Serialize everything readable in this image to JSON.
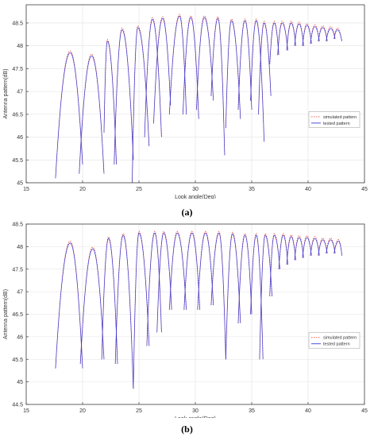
{
  "chart_data": [
    {
      "type": "line",
      "panel_label": "(a)",
      "xlabel": "Look angle(Deg)",
      "ylabel": "Antenna pattern(dB)",
      "xlim": [
        15,
        45
      ],
      "ylim": [
        45,
        48.9
      ],
      "xticks": [
        15,
        20,
        25,
        30,
        35,
        40,
        45
      ],
      "yticks": [
        45,
        45.5,
        46,
        46.5,
        47,
        47.5,
        48,
        48.5
      ],
      "grid": true,
      "legend_position": "right",
      "series": [
        {
          "name": "simulated pattern",
          "color": "#e8584a",
          "style": "dotted"
        },
        {
          "name": "tested pattern",
          "color": "#3a3ad8",
          "style": "solid"
        }
      ],
      "lobes": [
        {
          "start": 17.6,
          "peak": 18.9,
          "end": 20.0,
          "peak_value": 47.85,
          "left_min": 45.1,
          "right_min": 45.4
        },
        {
          "start": 19.7,
          "peak": 20.8,
          "end": 21.9,
          "peak_value": 47.78,
          "left_min": 45.2,
          "right_min": 45.2
        },
        {
          "start": 21.9,
          "peak": 22.2,
          "end": 23.0,
          "peak_value": 48.1,
          "left_min": 46.1,
          "right_min": 45.4
        },
        {
          "start": 22.8,
          "peak": 23.5,
          "end": 24.5,
          "peak_value": 48.35,
          "left_min": 45.4,
          "right_min": 45.5
        },
        {
          "start": 24.4,
          "peak": 24.9,
          "end": 25.9,
          "peak_value": 48.4,
          "left_min": 45.0,
          "right_min": 45.8
        },
        {
          "start": 25.5,
          "peak": 26.2,
          "end": 27.0,
          "peak_value": 48.58,
          "left_min": 46.0,
          "right_min": 46.0
        },
        {
          "start": 26.3,
          "peak": 27.1,
          "end": 27.8,
          "peak_value": 48.6,
          "left_min": 46.3,
          "right_min": 46.7
        },
        {
          "start": 27.7,
          "peak": 28.6,
          "end": 29.2,
          "peak_value": 48.65,
          "left_min": 46.5,
          "right_min": 46.5
        },
        {
          "start": 28.9,
          "peak": 29.6,
          "end": 30.3,
          "peak_value": 48.62,
          "left_min": 46.5,
          "right_min": 46.4
        },
        {
          "start": 30.1,
          "peak": 30.8,
          "end": 31.6,
          "peak_value": 48.62,
          "left_min": 46.6,
          "right_min": 46.8
        },
        {
          "start": 31.4,
          "peak": 32.0,
          "end": 32.6,
          "peak_value": 48.6,
          "left_min": 46.9,
          "right_min": 45.6
        },
        {
          "start": 32.7,
          "peak": 33.2,
          "end": 34.0,
          "peak_value": 48.55,
          "left_min": 46.2,
          "right_min": 46.4
        },
        {
          "start": 33.8,
          "peak": 34.4,
          "end": 35.0,
          "peak_value": 48.55,
          "left_min": 46.6,
          "right_min": 46.6
        },
        {
          "start": 34.9,
          "peak": 35.4,
          "end": 36.1,
          "peak_value": 48.55,
          "left_min": 46.8,
          "right_min": 45.9
        },
        {
          "start": 35.6,
          "peak": 36.1,
          "end": 36.7,
          "peak_value": 48.5,
          "left_min": 46.5,
          "right_min": 46.9
        },
        {
          "start": 36.6,
          "peak": 37.0,
          "end": 37.4,
          "peak_value": 48.5,
          "left_min": 47.6,
          "right_min": 47.8
        },
        {
          "start": 37.3,
          "peak": 37.7,
          "end": 38.2,
          "peak_value": 48.5,
          "left_min": 47.8,
          "right_min": 47.9
        },
        {
          "start": 38.1,
          "peak": 38.5,
          "end": 38.9,
          "peak_value": 48.5,
          "left_min": 47.9,
          "right_min": 48.0
        },
        {
          "start": 38.8,
          "peak": 39.2,
          "end": 39.6,
          "peak_value": 48.48,
          "left_min": 48.0,
          "right_min": 48.0
        },
        {
          "start": 39.5,
          "peak": 39.9,
          "end": 40.3,
          "peak_value": 48.45,
          "left_min": 48.0,
          "right_min": 48.05
        },
        {
          "start": 40.2,
          "peak": 40.6,
          "end": 41.0,
          "peak_value": 48.42,
          "left_min": 48.05,
          "right_min": 48.1
        },
        {
          "start": 40.9,
          "peak": 41.3,
          "end": 41.7,
          "peak_value": 48.4,
          "left_min": 48.1,
          "right_min": 48.1
        },
        {
          "start": 41.6,
          "peak": 42.0,
          "end": 42.4,
          "peak_value": 48.38,
          "left_min": 48.1,
          "right_min": 48.15
        },
        {
          "start": 42.3,
          "peak": 42.6,
          "end": 43.0,
          "peak_value": 48.35,
          "left_min": 48.15,
          "right_min": 48.1
        }
      ]
    },
    {
      "type": "line",
      "panel_label": "(b)",
      "xlabel": "Look angle(Deg)",
      "ylabel": "Antenna pattern(dB)",
      "xlim": [
        15,
        45
      ],
      "ylim": [
        44.5,
        48.5
      ],
      "xticks": [
        15,
        20,
        25,
        30,
        35,
        40,
        45
      ],
      "yticks": [
        44.5,
        45,
        45.5,
        46,
        46.5,
        47,
        47.5,
        48,
        48.5
      ],
      "grid": true,
      "legend_position": "right",
      "series": [
        {
          "name": "simulated pattern",
          "color": "#e8584a",
          "style": "dotted"
        },
        {
          "name": "tested pattern",
          "color": "#3a3ad8",
          "style": "solid"
        }
      ],
      "lobes": [
        {
          "start": 17.6,
          "peak": 18.9,
          "end": 20.0,
          "peak_value": 48.08,
          "left_min": 45.3,
          "right_min": 45.3
        },
        {
          "start": 19.8,
          "peak": 20.9,
          "end": 21.9,
          "peak_value": 47.95,
          "left_min": 45.4,
          "right_min": 45.5
        },
        {
          "start": 21.7,
          "peak": 22.3,
          "end": 23.1,
          "peak_value": 48.18,
          "left_min": 45.5,
          "right_min": 45.4
        },
        {
          "start": 22.9,
          "peak": 23.6,
          "end": 24.5,
          "peak_value": 48.25,
          "left_min": 45.4,
          "right_min": 44.85
        },
        {
          "start": 24.5,
          "peak": 25.0,
          "end": 25.9,
          "peak_value": 48.3,
          "left_min": 44.85,
          "right_min": 45.8
        },
        {
          "start": 25.7,
          "peak": 26.4,
          "end": 27.0,
          "peak_value": 48.3,
          "left_min": 45.8,
          "right_min": 46.1
        },
        {
          "start": 26.6,
          "peak": 27.2,
          "end": 27.9,
          "peak_value": 48.3,
          "left_min": 46.1,
          "right_min": 46.6
        },
        {
          "start": 27.7,
          "peak": 28.4,
          "end": 29.2,
          "peak_value": 48.3,
          "left_min": 46.6,
          "right_min": 46.6
        },
        {
          "start": 29.0,
          "peak": 29.7,
          "end": 30.4,
          "peak_value": 48.3,
          "left_min": 46.6,
          "right_min": 46.6
        },
        {
          "start": 30.2,
          "peak": 30.9,
          "end": 31.6,
          "peak_value": 48.3,
          "left_min": 46.6,
          "right_min": 46.7
        },
        {
          "start": 31.4,
          "peak": 32.1,
          "end": 32.7,
          "peak_value": 48.3,
          "left_min": 46.7,
          "right_min": 45.5
        },
        {
          "start": 32.7,
          "peak": 33.3,
          "end": 34.0,
          "peak_value": 48.28,
          "left_min": 45.5,
          "right_min": 46.3
        },
        {
          "start": 33.8,
          "peak": 34.4,
          "end": 35.0,
          "peak_value": 48.25,
          "left_min": 46.3,
          "right_min": 46.5
        },
        {
          "start": 34.9,
          "peak": 35.4,
          "end": 36.0,
          "peak_value": 48.25,
          "left_min": 46.5,
          "right_min": 45.5
        },
        {
          "start": 35.7,
          "peak": 36.2,
          "end": 36.8,
          "peak_value": 48.25,
          "left_min": 45.5,
          "right_min": 46.9
        },
        {
          "start": 36.6,
          "peak": 37.0,
          "end": 37.5,
          "peak_value": 48.25,
          "left_min": 46.9,
          "right_min": 47.5
        },
        {
          "start": 37.4,
          "peak": 37.8,
          "end": 38.2,
          "peak_value": 48.25,
          "left_min": 47.5,
          "right_min": 47.6
        },
        {
          "start": 38.1,
          "peak": 38.5,
          "end": 38.9,
          "peak_value": 48.22,
          "left_min": 47.6,
          "right_min": 47.7
        },
        {
          "start": 38.8,
          "peak": 39.2,
          "end": 39.6,
          "peak_value": 48.2,
          "left_min": 47.7,
          "right_min": 47.75
        },
        {
          "start": 39.5,
          "peak": 39.9,
          "end": 40.3,
          "peak_value": 48.2,
          "left_min": 47.75,
          "right_min": 47.8
        },
        {
          "start": 40.2,
          "peak": 40.6,
          "end": 41.0,
          "peak_value": 48.18,
          "left_min": 47.8,
          "right_min": 47.8
        },
        {
          "start": 40.9,
          "peak": 41.3,
          "end": 41.7,
          "peak_value": 48.15,
          "left_min": 47.8,
          "right_min": 47.85
        },
        {
          "start": 41.6,
          "peak": 42.0,
          "end": 42.4,
          "peak_value": 48.15,
          "left_min": 47.85,
          "right_min": 47.85
        },
        {
          "start": 42.3,
          "peak": 42.7,
          "end": 43.0,
          "peak_value": 48.12,
          "left_min": 47.85,
          "right_min": 47.8
        }
      ]
    }
  ]
}
